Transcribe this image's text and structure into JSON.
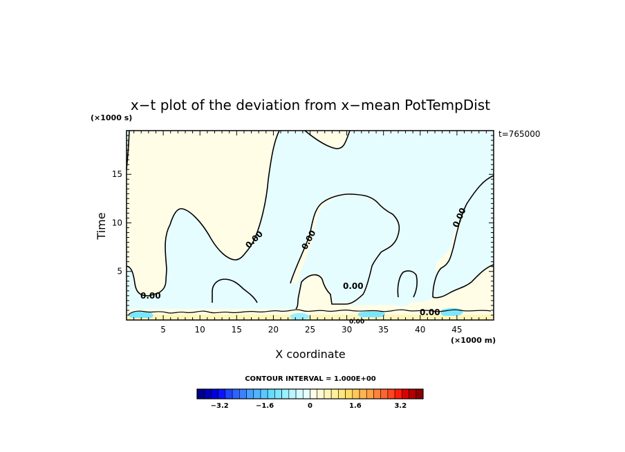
{
  "chart_data": {
    "type": "heatmap",
    "title": "x−t plot of the deviation from x−mean PotTempDist",
    "xlabel": "X coordinate",
    "ylabel": "Time",
    "x_unit": "(×1000 m)",
    "y_unit": "(×1000 s)",
    "time_stamp": "t=765000",
    "xlim": [
      0,
      50
    ],
    "ylim": [
      0,
      19.5
    ],
    "x_ticks": [
      5,
      10,
      15,
      20,
      25,
      30,
      35,
      40,
      45
    ],
    "y_ticks": [
      5,
      10,
      15
    ],
    "grid": false,
    "contour_interval_text": "CONTOUR INTERVAL = 1.000E+00",
    "contour_labels": [
      "0.00",
      "0.00",
      "0.00",
      "0.00",
      "0.00",
      "0.00",
      "0.00"
    ],
    "colorbar": {
      "ticks": [
        -3.2,
        -1.6,
        0,
        1.6,
        3.2
      ],
      "tick_labels": [
        "−3.2",
        "−1.6",
        "0",
        "1.6",
        "3.2"
      ],
      "range": [
        -4,
        4
      ],
      "colors": [
        "#00008b",
        "#0000b4",
        "#0000dc",
        "#0a14ff",
        "#1e46ff",
        "#2d64ff",
        "#3c82ff",
        "#46a0ff",
        "#50b4ff",
        "#5ac8ff",
        "#64dcff",
        "#7de6ff",
        "#9bf0ff",
        "#b9f5ff",
        "#d2faff",
        "#e6fdff",
        "#fffde6",
        "#fffad2",
        "#fff5b9",
        "#fff09b",
        "#ffe67d",
        "#ffdc64",
        "#ffc85a",
        "#ffb450",
        "#ffa046",
        "#ff823c",
        "#ff642d",
        "#ff461e",
        "#ff1e0a",
        "#dc0000",
        "#b40000",
        "#8b0000"
      ]
    },
    "colors": {
      "negative_small": "#e6fdff",
      "positive_small": "#fffde6",
      "cool_patch": "#7de6ff",
      "warm_patch": "#fff5b9",
      "contour_line": "#000000"
    }
  }
}
